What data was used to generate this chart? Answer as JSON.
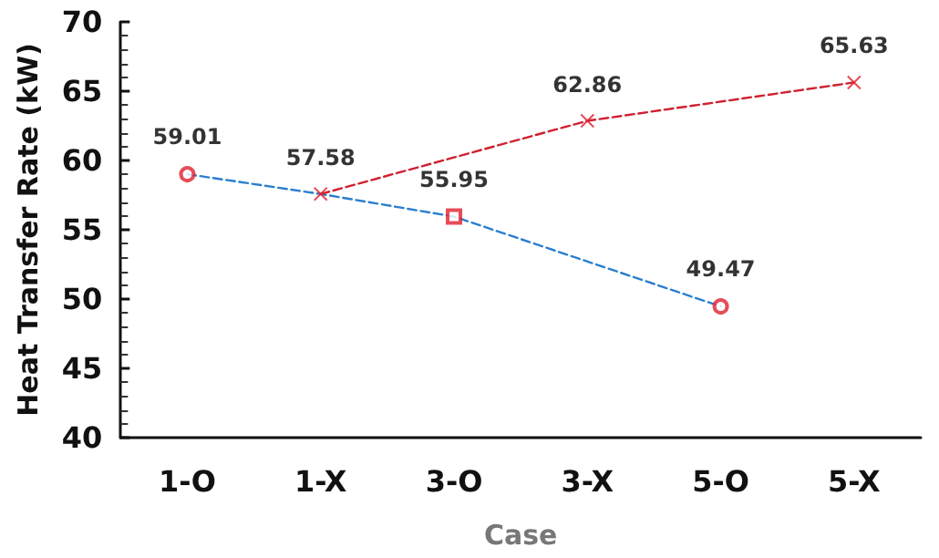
{
  "chart_data": {
    "type": "line",
    "xlabel": "Case",
    "ylabel": "Heat Transfer Rate (kW)",
    "categories": [
      "1-O",
      "1-X",
      "3-O",
      "3-X",
      "5-O",
      "5-X"
    ],
    "series": [
      {
        "color": "#2a7fd0",
        "line_style": "dashed",
        "marker": "none",
        "x": [
          "1-O",
          "1-X",
          "3-O",
          "5-O"
        ],
        "values": [
          59.01,
          57.58,
          55.95,
          49.47
        ]
      },
      {
        "color": "#d02030",
        "line_style": "dashed",
        "marker": "none",
        "x": [
          "1-X",
          "3-X",
          "5-X"
        ],
        "values": [
          57.58,
          62.86,
          65.63
        ]
      },
      {
        "type": "scatter",
        "color": "#e02030",
        "marker": "circle",
        "x": [
          "1-O",
          "5-O"
        ],
        "values": [
          59.01,
          49.47
        ],
        "value_labels": [
          "59.01",
          "49.47"
        ]
      },
      {
        "type": "scatter",
        "color": "#e02030",
        "marker": "square",
        "x": [
          "3-O"
        ],
        "values": [
          55.95
        ],
        "value_labels": [
          "55.95"
        ]
      },
      {
        "type": "scatter",
        "color": "#e02030",
        "marker": "cross",
        "x": [
          "1-X",
          "3-X",
          "5-X"
        ],
        "values": [
          57.58,
          62.86,
          65.63
        ],
        "value_labels": [
          "57.58",
          "62.86",
          "65.63"
        ]
      }
    ],
    "ylim": [
      40,
      70
    ],
    "yticks": [
      40,
      45,
      50,
      55,
      60,
      65,
      70
    ],
    "grid": false
  }
}
